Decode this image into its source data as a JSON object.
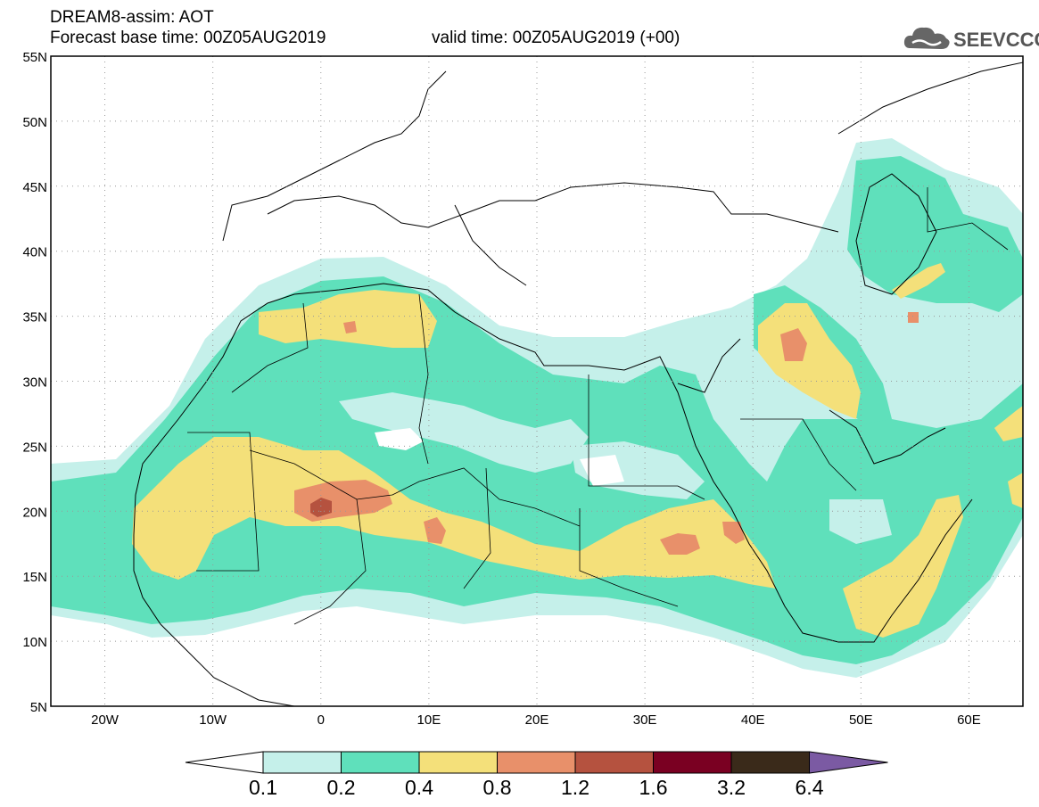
{
  "header": {
    "title": "DREAM8-assim: AOT",
    "base_time": "Forecast base time: 00Z05AUG2019",
    "valid_time": "valid time: 00Z05AUG2019 (+00)"
  },
  "logo": {
    "text": "SEEVCCC",
    "icon": "cloud-icon"
  },
  "map": {
    "lon_range": [
      -25,
      65
    ],
    "lat_range": [
      5,
      55
    ],
    "lat_ticks": [
      "55N",
      "50N",
      "45N",
      "40N",
      "35N",
      "30N",
      "25N",
      "20N",
      "15N",
      "10N",
      "5N"
    ],
    "lon_ticks": [
      "20W",
      "10W",
      "0",
      "10E",
      "20E",
      "30E",
      "40E",
      "50E",
      "60E"
    ],
    "grid": "dotted"
  },
  "colorbar": {
    "labels": [
      "0.1",
      "0.2",
      "0.4",
      "0.8",
      "1.2",
      "1.6",
      "3.2",
      "6.4"
    ],
    "colors": [
      "#ffffff",
      "#c5f0ea",
      "#5fe0bb",
      "#f4e07a",
      "#e8906a",
      "#b5523f",
      "#7a0022",
      "#3a2a1a",
      "#7b5aa3"
    ]
  }
}
